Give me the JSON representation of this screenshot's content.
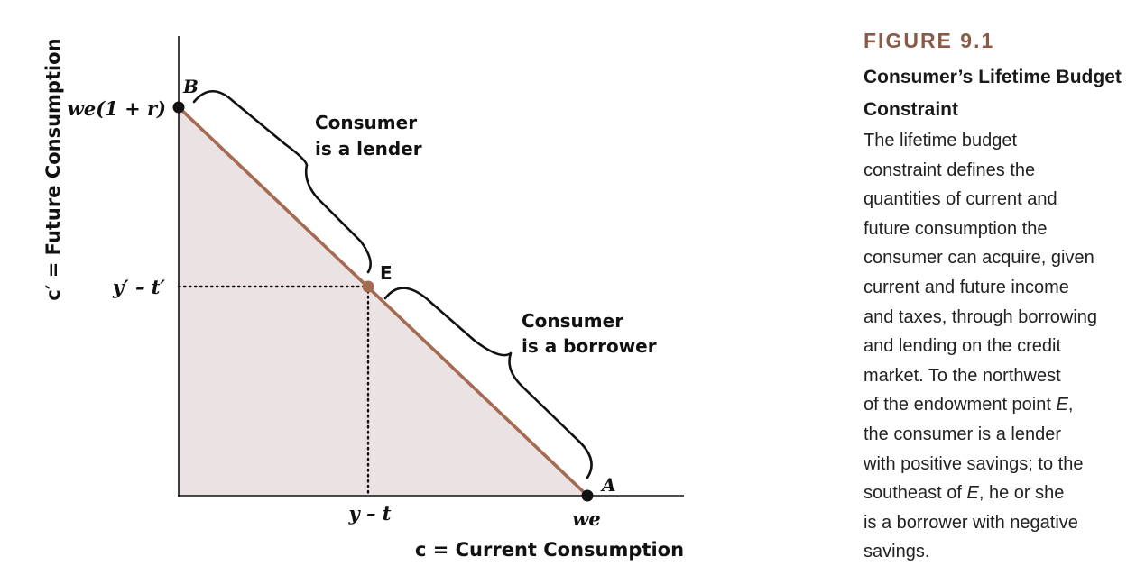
{
  "diagram": {
    "y_axis_label": "c′ = Future Consumption",
    "x_axis_label": "c = Current Consumption",
    "y_tick_top": "we(1 + r)",
    "y_tick_endowment": "y′ – t′",
    "x_tick_endowment": "y – t",
    "x_tick_right": "we",
    "point_b": "B",
    "point_e": "E",
    "point_a": "A",
    "lender_line1": "Consumer",
    "lender_line2": "is a lender",
    "borrower_line1": "Consumer",
    "borrower_line2": "is a borrower",
    "colors": {
      "budget_line": "#a46a52",
      "feasible_region": "#ebe2e3",
      "endowment_point": "#a46a52",
      "axes": "#111111"
    }
  },
  "caption": {
    "figure_number": "FIGURE 9.1",
    "title": "Consumer’s Lifetime Budget Constraint",
    "body_lines": [
      "The lifetime budget",
      "constraint defines the",
      "quantities of current and",
      "future consumption the",
      "consumer can acquire, given",
      "current and future income",
      "and taxes, through borrowing",
      "and lending on the credit",
      "market. To the northwest",
      "of the endowment point E,",
      "the consumer is a lender",
      "with positive savings; to the",
      "southeast of E, he or she",
      "is a borrower with negative",
      "savings."
    ]
  }
}
